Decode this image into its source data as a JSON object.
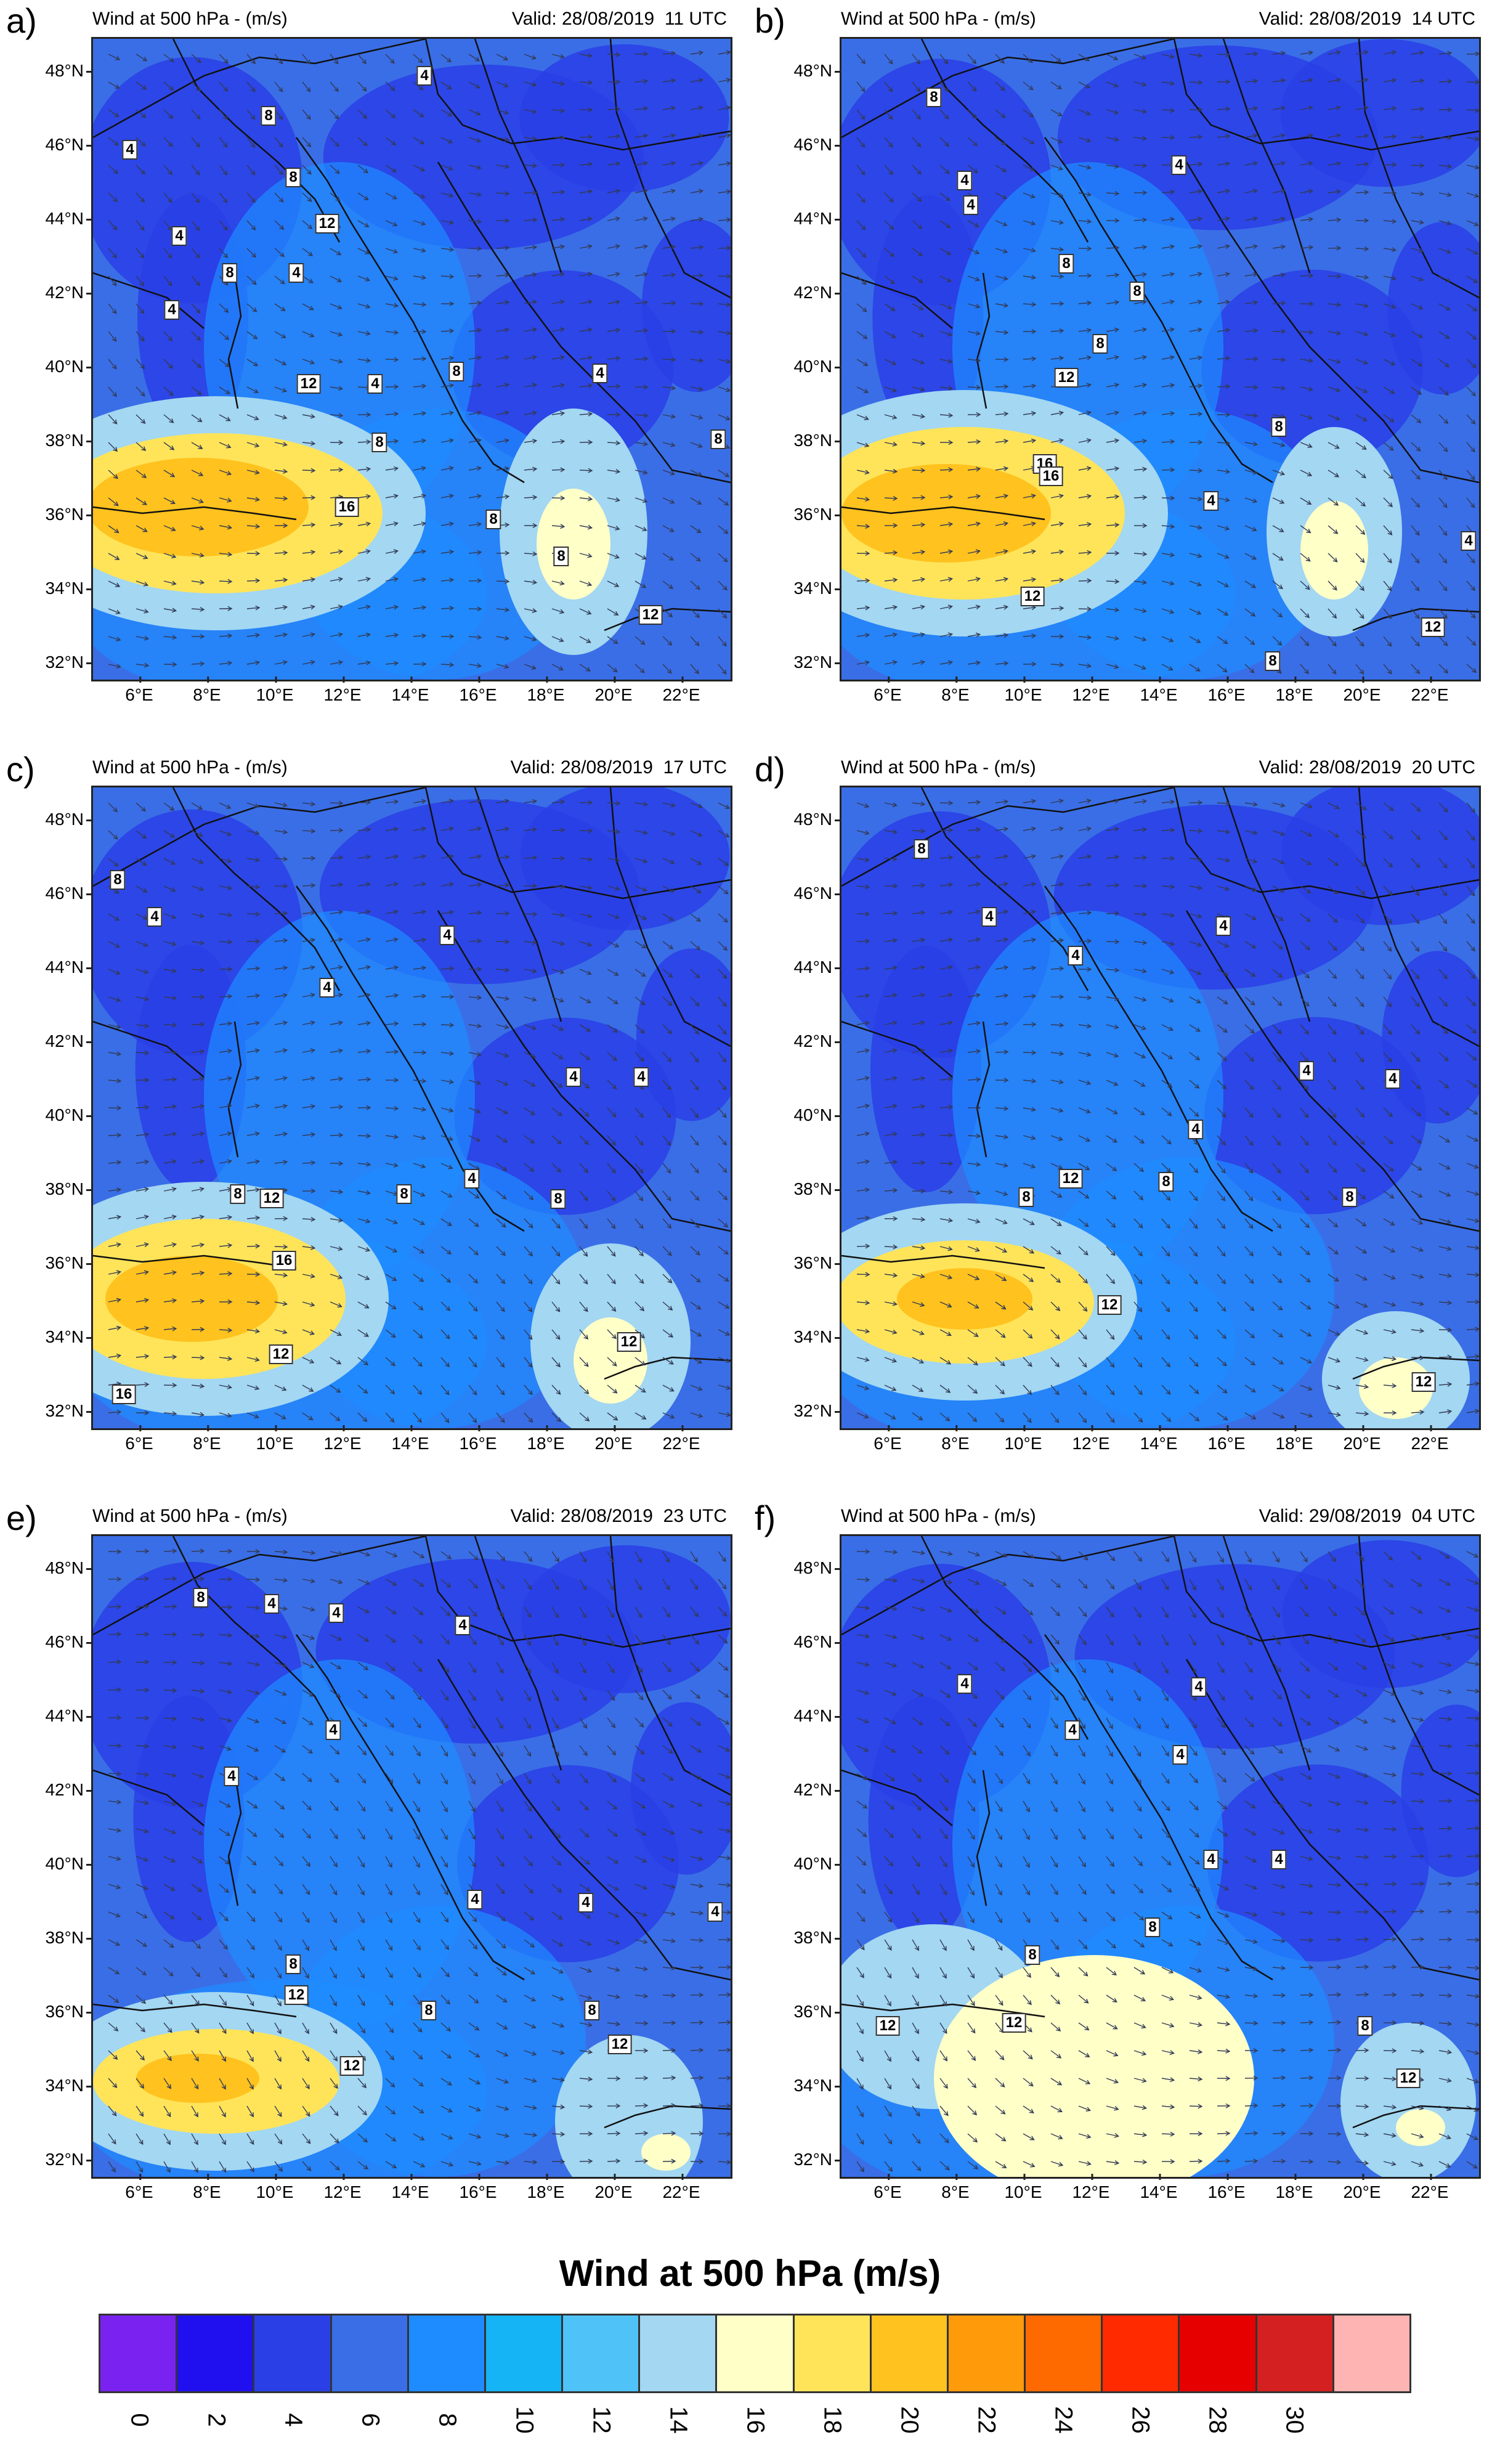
{
  "panels": [
    {
      "letter": "a)",
      "title": "Wind at 500 hPa - (m/s)",
      "valid": "Valid: 28/08/2019  11 UTC",
      "contour_labels": [
        "4",
        "8",
        "8",
        "4",
        "4",
        "8",
        "8",
        "4",
        "4",
        "4",
        "8",
        "8",
        "12",
        "16",
        "12",
        "8",
        "12",
        "4",
        "8"
      ]
    },
    {
      "letter": "b)",
      "title": "Wind at 500 hPa - (m/s)",
      "valid": "Valid: 28/08/2019  14 UTC",
      "contour_labels": [
        "8",
        "4",
        "4",
        "4",
        "8",
        "8",
        "8",
        "4",
        "12",
        "16",
        "8",
        "12",
        "4",
        "16",
        "12",
        "8"
      ]
    },
    {
      "letter": "c)",
      "title": "Wind at 500 hPa - (m/s)",
      "valid": "Valid: 28/08/2019  17 UTC",
      "contour_labels": [
        "8",
        "4",
        "4",
        "4",
        "4",
        "4",
        "8",
        "12",
        "8",
        "4",
        "8",
        "16",
        "16",
        "12",
        "12"
      ]
    },
    {
      "letter": "d)",
      "title": "Wind at 500 hPa - (m/s)",
      "valid": "Valid: 28/08/2019  20 UTC",
      "contour_labels": [
        "8",
        "4",
        "4",
        "4",
        "4",
        "4",
        "4",
        "8",
        "12",
        "8",
        "8",
        "12",
        "12"
      ]
    },
    {
      "letter": "e)",
      "title": "Wind at 500 hPa - (m/s)",
      "valid": "Valid: 28/08/2019  23 UTC",
      "contour_labels": [
        "8",
        "4",
        "4",
        "4",
        "4",
        "4",
        "4",
        "4",
        "4",
        "8",
        "12",
        "8",
        "8",
        "12",
        "12"
      ]
    },
    {
      "letter": "f)",
      "title": "Wind at 500 hPa - (m/s)",
      "valid": "Valid: 29/08/2019  04 UTC",
      "contour_labels": [
        "4",
        "4",
        "4",
        "4",
        "4",
        "4",
        "8",
        "8",
        "12",
        "12",
        "8",
        "12"
      ]
    }
  ],
  "lat_labels": [
    "48°N",
    "46°N",
    "44°N",
    "42°N",
    "40°N",
    "38°N",
    "36°N",
    "34°N",
    "32°N"
  ],
  "lon_labels": [
    "6°E",
    "8°E",
    "10°E",
    "12°E",
    "14°E",
    "16°E",
    "18°E",
    "20°E",
    "22°E"
  ],
  "legend": {
    "title": "Wind at 500 hPa (m/s)",
    "ticks": [
      "0",
      "2",
      "4",
      "6",
      "8",
      "10",
      "12",
      "14",
      "16",
      "18",
      "20",
      "22",
      "24",
      "26",
      "28",
      "30"
    ],
    "colors": [
      "#7a22f0",
      "#2010f0",
      "#2a40e6",
      "#3a6ee6",
      "#1e8cff",
      "#14b4f5",
      "#4fc3f7",
      "#a3d7f2",
      "#ffffc8",
      "#ffe45a",
      "#ffc21e",
      "#ff9a0a",
      "#ff6a00",
      "#ff2a00",
      "#e60000",
      "#d42020",
      "#ffb4b4"
    ]
  }
}
